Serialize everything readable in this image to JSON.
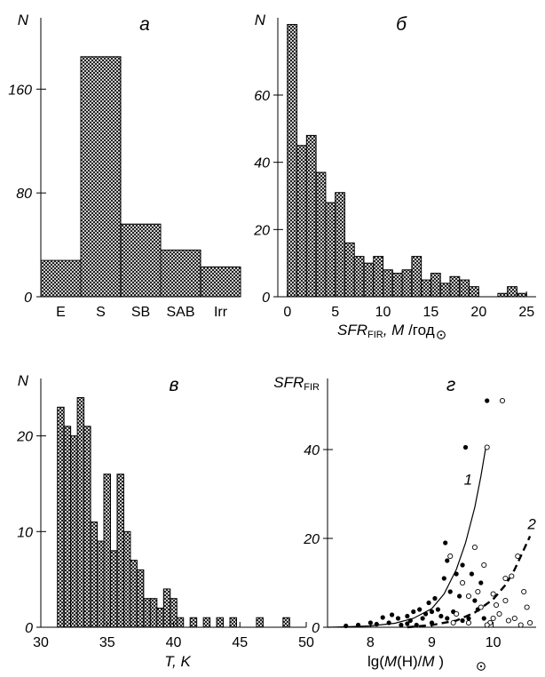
{
  "chart_data": [
    {
      "panel": "а",
      "type": "bar",
      "ylabel": "N",
      "categories": [
        "E",
        "S",
        "SB",
        "SAB",
        "Irr"
      ],
      "values": [
        28,
        185,
        56,
        36,
        23
      ],
      "ylim": [
        0,
        215
      ],
      "yticks": [
        0,
        80,
        160
      ],
      "grid": false
    },
    {
      "panel": "б",
      "type": "bar",
      "ylabel": "N",
      "xlabel": {
        "pre": "SFR",
        "sub": "FIR",
        "mid": ", M",
        "unit": "/год"
      },
      "bin_width": 1,
      "x": [
        0.5,
        1.5,
        2.5,
        3.5,
        4.5,
        5.5,
        6.5,
        7.5,
        8.5,
        9.5,
        10.5,
        11.5,
        12.5,
        13.5,
        14.5,
        15.5,
        16.5,
        17.5,
        18.5,
        19.5,
        20.5,
        21.5,
        22.5,
        23.5,
        24.5
      ],
      "values": [
        81,
        45,
        48,
        37,
        28,
        31,
        16,
        12,
        10,
        12,
        8,
        7,
        8,
        12,
        5,
        7,
        4,
        6,
        5,
        3,
        0,
        0,
        1,
        3,
        1
      ],
      "xlim": [
        -1,
        26
      ],
      "ylim": [
        0,
        83
      ],
      "xticks": [
        0,
        5,
        10,
        15,
        20,
        25
      ],
      "yticks": [
        0,
        20,
        40,
        60
      ],
      "grid": false
    },
    {
      "panel": "в",
      "type": "bar",
      "ylabel": "N",
      "xlabel": "T, K",
      "bin_width": 0.5,
      "x": [
        31.5,
        32,
        32.5,
        33,
        33.5,
        34,
        34.5,
        35,
        35.5,
        36,
        36.5,
        37,
        37.5,
        38,
        38.5,
        39,
        39.5,
        40,
        40.5,
        41.5,
        42.5,
        43.5,
        44.5,
        46.5,
        48.5
      ],
      "values": [
        23,
        21,
        20,
        24,
        21,
        11,
        9,
        16,
        8,
        16,
        10,
        7,
        6,
        3,
        3,
        2,
        4,
        3,
        1,
        1,
        1,
        1,
        1,
        1,
        1
      ],
      "xlim": [
        30,
        50
      ],
      "ylim": [
        0,
        26
      ],
      "xticks": [
        30,
        35,
        40,
        45,
        50
      ],
      "yticks": [
        0,
        10,
        20
      ],
      "grid": false
    },
    {
      "panel": "г",
      "type": "scatter",
      "ylabel": {
        "pre": "SFR",
        "sub": "FIR"
      },
      "xlabel": {
        "pre": "lg(",
        "italic": "M",
        "mid": "(H)/",
        "italic2": "M",
        "post": ")"
      },
      "xlim": [
        7.3,
        10.7
      ],
      "ylim": [
        0,
        56
      ],
      "xticks": [
        8,
        9,
        10
      ],
      "yticks": [
        0,
        20,
        40
      ],
      "grid": false,
      "series": [
        {
          "marker": "filled",
          "points": [
            [
              7.6,
              0.3
            ],
            [
              7.8,
              0.5
            ],
            [
              8.0,
              1.0
            ],
            [
              8.1,
              0.7
            ],
            [
              8.2,
              2.2
            ],
            [
              8.3,
              1.0
            ],
            [
              8.35,
              2.8
            ],
            [
              8.45,
              2.0
            ],
            [
              8.5,
              0.5
            ],
            [
              8.6,
              2.5
            ],
            [
              8.65,
              1.5
            ],
            [
              8.7,
              3.5
            ],
            [
              8.75,
              0.5
            ],
            [
              8.8,
              4.0
            ],
            [
              8.85,
              2.0
            ],
            [
              8.9,
              3.0
            ],
            [
              8.95,
              5.5
            ],
            [
              9.0,
              1.0
            ],
            [
              9.05,
              6.5
            ],
            [
              9.1,
              4.0
            ],
            [
              9.15,
              2.5
            ],
            [
              9.2,
              11.0
            ],
            [
              9.22,
              19.0
            ],
            [
              9.25,
              15.0
            ],
            [
              9.3,
              8.0
            ],
            [
              9.35,
              3.5
            ],
            [
              9.4,
              12.0
            ],
            [
              9.45,
              7.0
            ],
            [
              9.5,
              14.0
            ],
            [
              9.55,
              40.5
            ],
            [
              9.6,
              2.0
            ],
            [
              9.65,
              12.0
            ],
            [
              9.7,
              6.0
            ],
            [
              9.75,
              4.0
            ],
            [
              9.8,
              10.0
            ],
            [
              9.85,
              2.0
            ],
            [
              9.9,
              51.0
            ],
            [
              9.25,
              2.0
            ],
            [
              9.0,
              3.5
            ],
            [
              8.6,
              0.8
            ],
            [
              9.5,
              1.5
            ]
          ]
        },
        {
          "marker": "open",
          "points": [
            [
              9.3,
              16.0
            ],
            [
              9.4,
              3.0
            ],
            [
              9.5,
              10.0
            ],
            [
              9.6,
              7.0
            ],
            [
              9.7,
              18.0
            ],
            [
              9.75,
              8.0
            ],
            [
              9.8,
              4.5
            ],
            [
              9.85,
              14.0
            ],
            [
              9.9,
              40.5
            ],
            [
              9.95,
              1.0
            ],
            [
              10.0,
              7.5
            ],
            [
              10.05,
              5.0
            ],
            [
              10.1,
              3.0
            ],
            [
              10.15,
              51.0
            ],
            [
              10.2,
              11.0
            ],
            [
              10.25,
              1.5
            ],
            [
              10.3,
              11.5
            ],
            [
              10.35,
              2.0
            ],
            [
              10.4,
              16.0
            ],
            [
              10.45,
              0.5
            ],
            [
              10.5,
              8.0
            ],
            [
              10.55,
              4.5
            ],
            [
              10.6,
              1.0
            ],
            [
              9.9,
              0.5
            ],
            [
              10.0,
              2.0
            ],
            [
              9.6,
              1.0
            ],
            [
              10.2,
              6.0
            ],
            [
              9.35,
              1.0
            ]
          ]
        }
      ],
      "curves": [
        {
          "label": "1",
          "style": "solid",
          "points": [
            [
              7.3,
              0
            ],
            [
              7.6,
              0.1
            ],
            [
              8.0,
              0.3
            ],
            [
              8.4,
              0.9
            ],
            [
              8.7,
              2.0
            ],
            [
              9.0,
              4.2
            ],
            [
              9.2,
              7.5
            ],
            [
              9.4,
              13.0
            ],
            [
              9.55,
              19.0
            ],
            [
              9.7,
              27.0
            ],
            [
              9.8,
              34.0
            ],
            [
              9.88,
              40.5
            ]
          ]
        },
        {
          "label": "2",
          "style": "dashed",
          "points": [
            [
              8.6,
              0
            ],
            [
              9.0,
              0.5
            ],
            [
              9.4,
              1.5
            ],
            [
              9.7,
              3.3
            ],
            [
              10.0,
              6.3
            ],
            [
              10.2,
              9.5
            ],
            [
              10.35,
              13.0
            ],
            [
              10.5,
              17.5
            ],
            [
              10.6,
              20.5
            ]
          ]
        }
      ]
    }
  ]
}
